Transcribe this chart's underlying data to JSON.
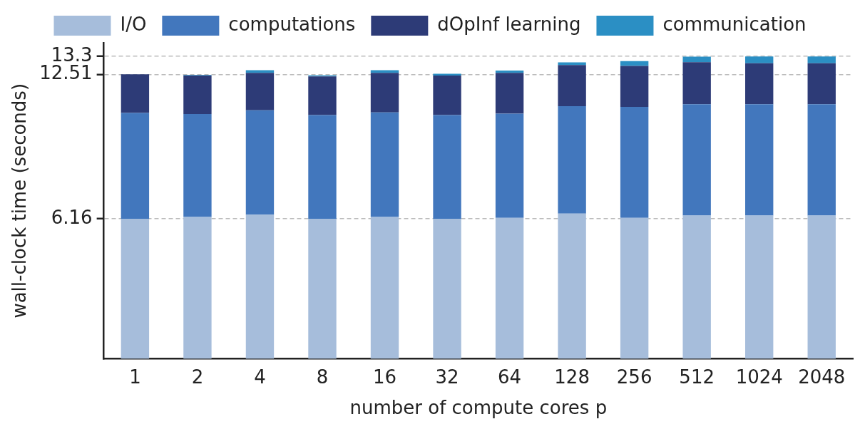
{
  "chart_data": {
    "type": "bar",
    "stacked": true,
    "xlabel": "number of compute cores p",
    "ylabel": "wall-clock time (seconds)",
    "categories": [
      "1",
      "2",
      "4",
      "8",
      "16",
      "32",
      "64",
      "128",
      "256",
      "512",
      "1024",
      "2048"
    ],
    "series": [
      {
        "name": "I/O",
        "color": "#a6bddb",
        "values": [
          6.16,
          6.24,
          6.34,
          6.16,
          6.24,
          6.16,
          6.2,
          6.39,
          6.2,
          6.3,
          6.3,
          6.3
        ]
      },
      {
        "name": "computations",
        "color": "#4277bd",
        "values": [
          4.65,
          4.53,
          4.59,
          4.56,
          4.6,
          4.56,
          4.58,
          4.72,
          4.88,
          4.9,
          4.9,
          4.9
        ]
      },
      {
        "name": "dOpInf learning",
        "color": "#2d3b77",
        "values": [
          1.7,
          1.69,
          1.65,
          1.7,
          1.74,
          1.74,
          1.8,
          1.81,
          1.8,
          1.85,
          1.8,
          1.8
        ]
      },
      {
        "name": "communication",
        "color": "#2b8fc4",
        "values": [
          null,
          0.02,
          0.11,
          0.05,
          0.11,
          0.08,
          0.1,
          0.12,
          0.21,
          0.24,
          0.3,
          0.3
        ]
      }
    ],
    "ylim": [
      0,
      13.9
    ],
    "yticks": [
      6.16,
      12.51,
      13.3
    ],
    "grid": "y",
    "line_style": "dashed",
    "legend": "top"
  }
}
